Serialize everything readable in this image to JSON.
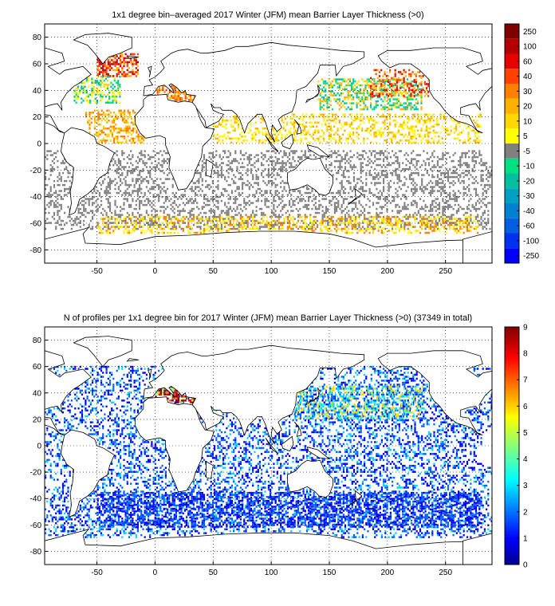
{
  "chart_data": [
    {
      "type": "heatmap",
      "title": "1x1 degree bin–averaged 2017 Winter (JFM) mean Barrier Layer Thickness (>0)",
      "xlabel": "",
      "ylabel": "",
      "xlim": [
        -95,
        290
      ],
      "ylim": [
        -90,
        90
      ],
      "x_ticks": [
        -50,
        0,
        50,
        100,
        150,
        200,
        250
      ],
      "y_ticks": [
        80,
        60,
        40,
        20,
        0,
        -20,
        -40,
        -60,
        -80
      ],
      "grid": true,
      "colorbar": {
        "labels": [
          "250",
          "100",
          "60",
          "40",
          "30",
          "20",
          "10",
          "5",
          "-5",
          "-10",
          "-20",
          "-30",
          "-40",
          "-60",
          "-100",
          "-250"
        ],
        "colors": [
          "#800000",
          "#b40000",
          "#e60000",
          "#ff4000",
          "#ff8000",
          "#ffb000",
          "#ffd800",
          "#ffff00",
          "#808080",
          "#00e080",
          "#00c0a0",
          "#00a0c0",
          "#0080d0",
          "#0060e0",
          "#0030f0",
          "#0000ff"
        ]
      },
      "regions": [
        {
          "lon": [
            -95,
            290
          ],
          "lat": [
            -65,
            -5
          ],
          "density": 0.3,
          "colors": [
            "#808080"
          ]
        },
        {
          "lon": [
            -50,
            -15
          ],
          "lat": [
            50,
            68
          ],
          "density": 0.6,
          "colors": [
            "#ff4000",
            "#e60000",
            "#b40000",
            "#ffb000"
          ]
        },
        {
          "lon": [
            -70,
            -30
          ],
          "lat": [
            30,
            50
          ],
          "density": 0.5,
          "colors": [
            "#00c0a0",
            "#00e080",
            "#ffd800",
            "#ffff00"
          ]
        },
        {
          "lon": [
            140,
            230
          ],
          "lat": [
            25,
            48
          ],
          "density": 0.45,
          "colors": [
            "#00c0a0",
            "#00e080",
            "#ffd800",
            "#ffb000"
          ]
        },
        {
          "lon": [
            185,
            245
          ],
          "lat": [
            35,
            55
          ],
          "density": 0.3,
          "colors": [
            "#ff4000",
            "#e60000",
            "#ffb000"
          ]
        },
        {
          "lon": [
            -60,
            -10
          ],
          "lat": [
            0,
            25
          ],
          "density": 0.45,
          "colors": [
            "#ffb000",
            "#ff8000",
            "#ffd800"
          ]
        },
        {
          "lon": [
            50,
            280
          ],
          "lat": [
            0,
            22
          ],
          "density": 0.35,
          "colors": [
            "#ffd800",
            "#ffff00",
            "#ffb000"
          ]
        },
        {
          "lon": [
            -50,
            280
          ],
          "lat": [
            -68,
            -55
          ],
          "density": 0.35,
          "colors": [
            "#ffd800",
            "#ffff00",
            "#ff8000"
          ]
        },
        {
          "lon": [
            0,
            35
          ],
          "lat": [
            32,
            44
          ],
          "density": 0.7,
          "colors": [
            "#ff4000",
            "#ff8000",
            "#ffb000"
          ]
        }
      ]
    },
    {
      "type": "heatmap",
      "title": "N of profiles per 1x1 degree bin for 2017 Winter (JFM) mean Barrier Layer Thickness (>0) (37349 in total)",
      "total_profiles": 37349,
      "xlabel": "",
      "ylabel": "",
      "xlim": [
        -95,
        290
      ],
      "ylim": [
        -90,
        90
      ],
      "x_ticks": [
        -50,
        0,
        50,
        100,
        150,
        200,
        250
      ],
      "y_ticks": [
        80,
        60,
        40,
        20,
        0,
        -20,
        -40,
        -60,
        -80
      ],
      "grid": true,
      "colorbar": {
        "min": 0,
        "max": 9,
        "ticks": [
          0,
          1,
          2,
          3,
          4,
          5,
          6,
          7,
          8,
          9
        ]
      },
      "regions": [
        {
          "lon": [
            -95,
            290
          ],
          "lat": [
            -70,
            60
          ],
          "density": 0.32,
          "values": [
            1,
            2,
            2,
            1,
            3
          ]
        },
        {
          "lon": [
            -50,
            280
          ],
          "lat": [
            -62,
            -35
          ],
          "density": 0.5,
          "values": [
            1,
            1,
            2,
            2
          ]
        },
        {
          "lon": [
            0,
            35
          ],
          "lat": [
            32,
            44
          ],
          "density": 0.7,
          "values": [
            8,
            9,
            7,
            5
          ]
        },
        {
          "lon": [
            120,
            230
          ],
          "lat": [
            20,
            45
          ],
          "density": 0.45,
          "values": [
            2,
            3,
            4,
            6
          ]
        }
      ]
    }
  ]
}
